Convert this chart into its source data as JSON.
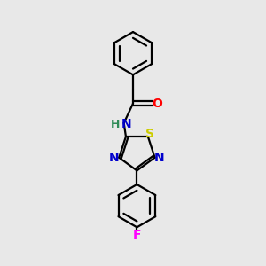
{
  "background_color": "#e8e8e8",
  "atom_colors": {
    "C": "#000000",
    "N": "#0000cd",
    "O": "#ff0000",
    "S": "#cccc00",
    "F": "#ff00ff",
    "H": "#2e8b57"
  },
  "bond_color": "#000000",
  "figsize": [
    3.0,
    3.0
  ],
  "dpi": 100,
  "lw": 1.6
}
